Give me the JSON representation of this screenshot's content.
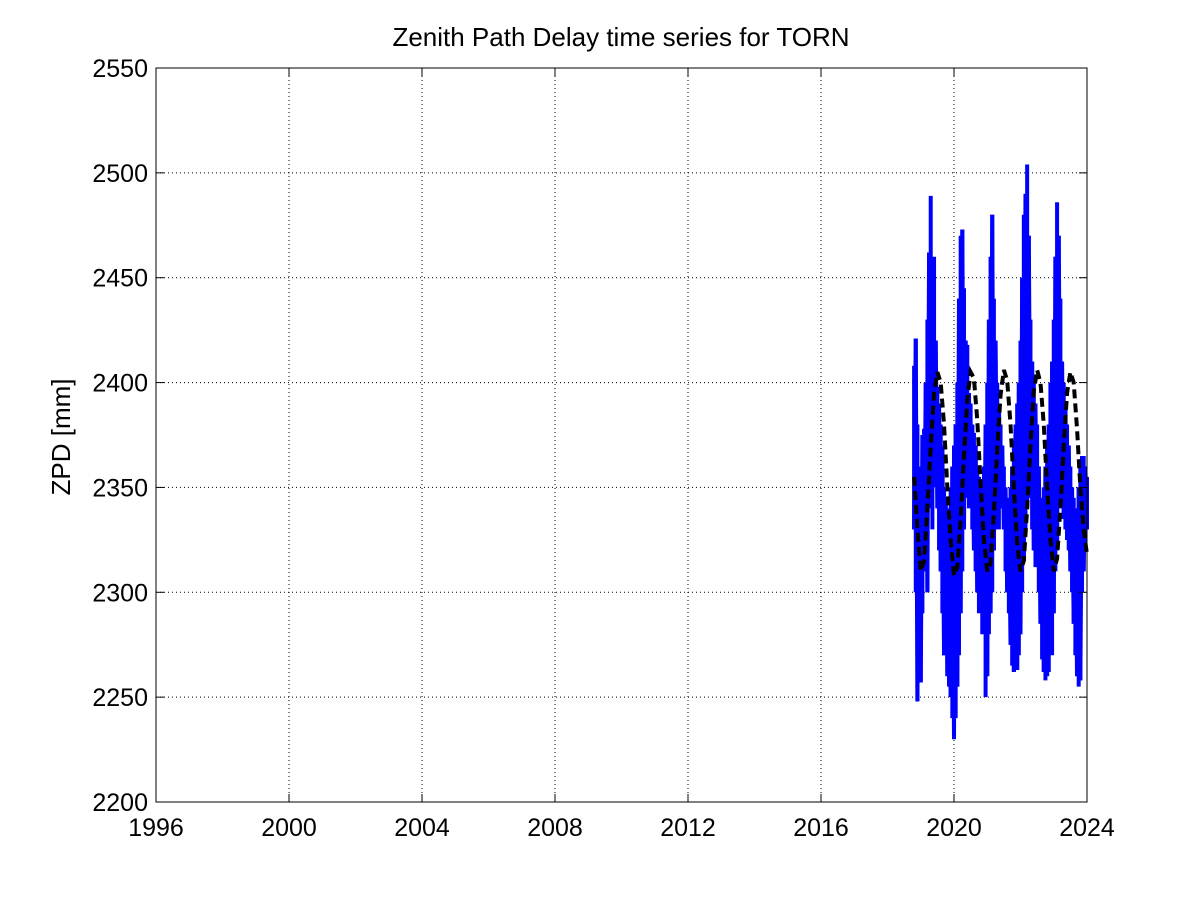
{
  "chart_data": {
    "type": "line",
    "title": "Zenith Path Delay time series for TORN",
    "xlabel": "",
    "ylabel": "ZPD [mm]",
    "xlim": [
      1996,
      2024
    ],
    "ylim": [
      2200,
      2550
    ],
    "x_ticks": [
      "1996",
      "2000",
      "2004",
      "2008",
      "2012",
      "2016",
      "2020",
      "2024"
    ],
    "y_ticks": [
      "2200",
      "2250",
      "2300",
      "2350",
      "2400",
      "2450",
      "2500",
      "2550"
    ],
    "grid": true,
    "legend": "none",
    "series": [
      {
        "style": "solid",
        "color": "#0000ff",
        "x": [
          2018.8,
          2018.85,
          2018.9,
          2018.95,
          2019.0,
          2019.05,
          2019.1,
          2019.15,
          2019.2,
          2019.25,
          2019.3,
          2019.35,
          2019.4,
          2019.45,
          2019.5,
          2019.55,
          2019.6,
          2019.65,
          2019.7,
          2019.75,
          2019.8,
          2019.85,
          2019.9,
          2019.95,
          2020.0,
          2020.05,
          2020.1,
          2020.15,
          2020.2,
          2020.25,
          2020.3,
          2020.35,
          2020.4,
          2020.45,
          2020.5,
          2020.55,
          2020.6,
          2020.65,
          2020.7,
          2020.75,
          2020.8,
          2020.85,
          2020.9,
          2020.95,
          2021.0,
          2021.05,
          2021.1,
          2021.15,
          2021.2,
          2021.25,
          2021.3,
          2021.35,
          2021.4,
          2021.45,
          2021.5,
          2021.55,
          2021.6,
          2021.65,
          2021.7,
          2021.75,
          2021.8,
          2021.85,
          2021.9,
          2021.95,
          2022.0,
          2022.05,
          2022.1,
          2022.15,
          2022.2,
          2022.25,
          2022.3,
          2022.35,
          2022.4,
          2022.45,
          2022.5,
          2022.55,
          2022.6,
          2022.65,
          2022.7,
          2022.75,
          2022.8,
          2022.85,
          2022.9,
          2022.95,
          2023.0,
          2023.05,
          2023.1,
          2023.15,
          2023.2,
          2023.25,
          2023.3,
          2023.35,
          2023.4,
          2023.45,
          2023.5,
          2023.55,
          2023.6,
          2023.65,
          2023.7,
          2023.75,
          2023.8,
          2023.85,
          2023.9,
          2023.95,
          2024.0
        ],
        "min": [
          2330,
          2300,
          2248,
          2280,
          2257,
          2290,
          2310,
          2320,
          2300,
          2340,
          2350,
          2330,
          2360,
          2350,
          2340,
          2320,
          2310,
          2290,
          2270,
          2290,
          2260,
          2255,
          2250,
          2240,
          2230,
          2240,
          2255,
          2270,
          2290,
          2310,
          2330,
          2345,
          2350,
          2340,
          2350,
          2330,
          2320,
          2310,
          2300,
          2290,
          2300,
          2280,
          2290,
          2250,
          2260,
          2280,
          2290,
          2300,
          2320,
          2330,
          2340,
          2330,
          2350,
          2340,
          2330,
          2310,
          2300,
          2290,
          2275,
          2265,
          2262,
          2270,
          2263,
          2270,
          2280,
          2300,
          2315,
          2330,
          2340,
          2350,
          2345,
          2330,
          2320,
          2312,
          2313,
          2300,
          2285,
          2268,
          2262,
          2258,
          2260,
          2262,
          2280,
          2270,
          2290,
          2310,
          2320,
          2340,
          2350,
          2340,
          2335,
          2330,
          2325,
          2320,
          2310,
          2300,
          2285,
          2270,
          2260,
          2255,
          2258,
          2300,
          2310,
          2320,
          2330
        ],
        "max": [
          2408,
          2421,
          2380,
          2360,
          2350,
          2375,
          2378,
          2400,
          2430,
          2462,
          2489,
          2450,
          2460,
          2420,
          2398,
          2390,
          2380,
          2370,
          2350,
          2345,
          2340,
          2335,
          2350,
          2360,
          2370,
          2380,
          2400,
          2440,
          2470,
          2473,
          2445,
          2420,
          2418,
          2395,
          2390,
          2380,
          2376,
          2370,
          2360,
          2355,
          2345,
          2350,
          2360,
          2380,
          2400,
          2430,
          2460,
          2480,
          2440,
          2420,
          2400,
          2390,
          2380,
          2370,
          2360,
          2350,
          2345,
          2340,
          2350,
          2360,
          2370,
          2380,
          2390,
          2400,
          2420,
          2450,
          2480,
          2490,
          2504,
          2470,
          2430,
          2410,
          2400,
          2390,
          2380,
          2360,
          2345,
          2340,
          2350,
          2360,
          2370,
          2380,
          2400,
          2410,
          2430,
          2460,
          2486,
          2470,
          2440,
          2410,
          2400,
          2390,
          2380,
          2370,
          2360,
          2350,
          2345,
          2340,
          2335,
          2350,
          2360,
          2365,
          2365,
          2360,
          2355
        ]
      },
      {
        "style": "dashed",
        "color": "#000000",
        "x": [
          2018.8,
          2018.9,
          2019.0,
          2019.1,
          2019.2,
          2019.3,
          2019.4,
          2019.5,
          2019.6,
          2019.7,
          2019.8,
          2019.9,
          2020.0,
          2020.1,
          2020.2,
          2020.3,
          2020.4,
          2020.5,
          2020.6,
          2020.7,
          2020.8,
          2020.9,
          2021.0,
          2021.1,
          2021.2,
          2021.3,
          2021.4,
          2021.5,
          2021.6,
          2021.7,
          2021.8,
          2021.9,
          2022.0,
          2022.1,
          2022.2,
          2022.3,
          2022.4,
          2022.5,
          2022.6,
          2022.7,
          2022.8,
          2022.9,
          2023.0,
          2023.1,
          2023.2,
          2023.3,
          2023.4,
          2023.5,
          2023.6,
          2023.7,
          2023.8,
          2023.9,
          2024.0
        ],
        "y": [
          2355,
          2330,
          2310,
          2315,
          2340,
          2370,
          2395,
          2405,
          2400,
          2380,
          2350,
          2325,
          2308,
          2312,
          2335,
          2365,
          2392,
          2405,
          2402,
          2382,
          2352,
          2325,
          2310,
          2314,
          2338,
          2368,
          2394,
          2406,
          2401,
          2380,
          2350,
          2323,
          2310,
          2315,
          2340,
          2370,
          2396,
          2406,
          2400,
          2380,
          2350,
          2325,
          2310,
          2316,
          2340,
          2370,
          2395,
          2405,
          2400,
          2378,
          2350,
          2330,
          2318
        ]
      }
    ]
  }
}
